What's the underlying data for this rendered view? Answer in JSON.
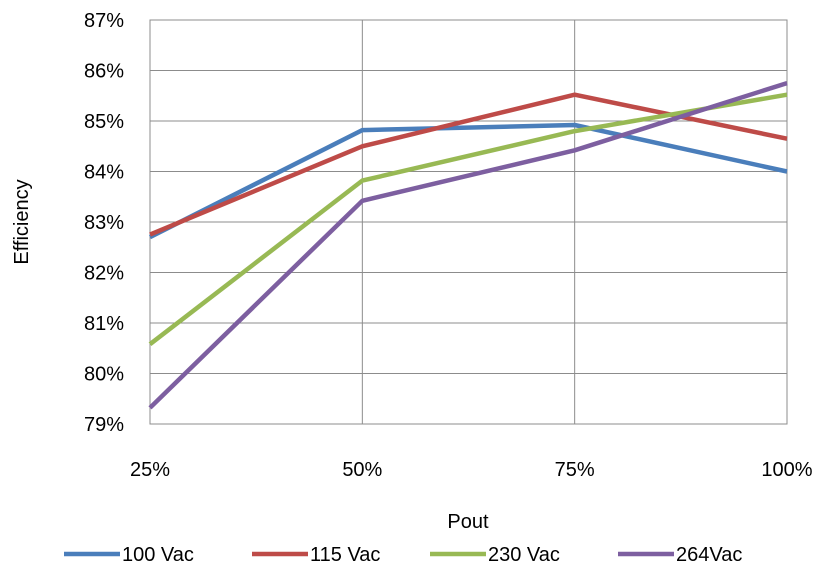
{
  "chart_data": {
    "type": "line",
    "title": "",
    "xlabel": "Pout",
    "ylabel": "Efficiency",
    "categories": [
      "25%",
      "50%",
      "75%",
      "100%"
    ],
    "y_ticks": [
      "79%",
      "80%",
      "81%",
      "82%",
      "83%",
      "84%",
      "85%",
      "86%",
      "87%"
    ],
    "ylim": [
      79,
      87
    ],
    "grid": true,
    "legend_position": "bottom",
    "series": [
      {
        "name": "100 Vac",
        "color": "#4A7EBB",
        "values": [
          82.7,
          84.82,
          84.92,
          84.0
        ]
      },
      {
        "name": "115 Vac",
        "color": "#BE4B48",
        "values": [
          82.75,
          84.5,
          85.52,
          84.65
        ]
      },
      {
        "name": "230 Vac",
        "color": "#98B954",
        "values": [
          80.58,
          83.82,
          84.8,
          85.52
        ]
      },
      {
        "name": "264Vac",
        "color": "#7D5FA0",
        "values": [
          79.32,
          83.42,
          84.42,
          85.75
        ]
      }
    ]
  }
}
